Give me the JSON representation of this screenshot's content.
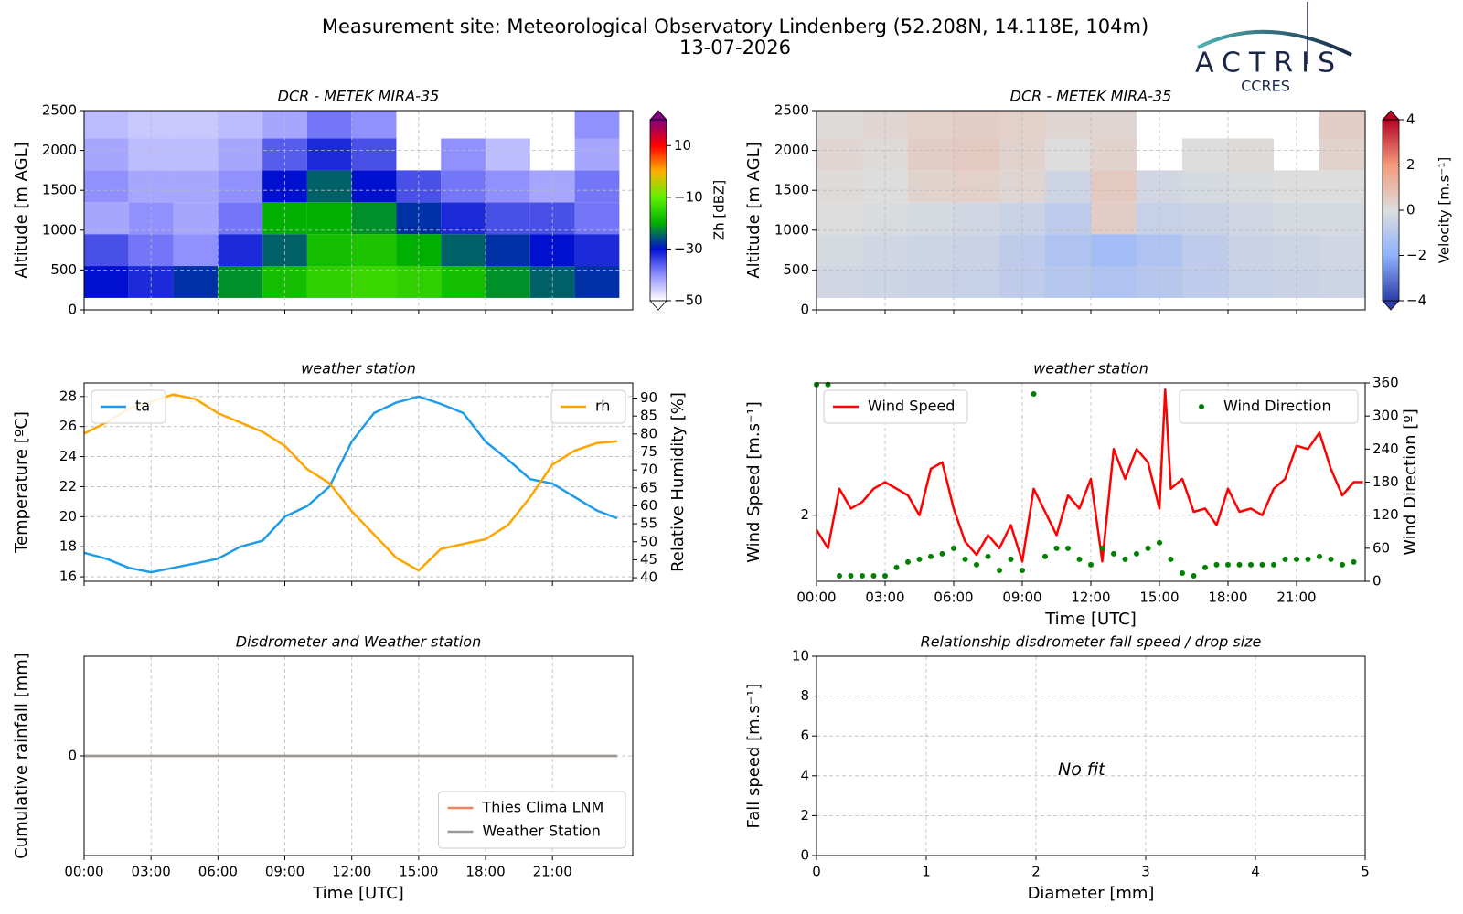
{
  "header": {
    "title": "Measurement site: Meteorological Observatory Lindenberg (52.208N, 14.118E, 104m)",
    "date": "13-07-2026",
    "logo": "ACTRIS",
    "logo_sub": "CCRES"
  },
  "chart_data": [
    {
      "type": "heatmap",
      "title": "DCR - METEK MIRA-35",
      "y_label": "Altitude [m AGL]",
      "xlim": [
        0,
        24.6
      ],
      "xticks": [
        0,
        3,
        6,
        9,
        12,
        15,
        18,
        21
      ],
      "xtick_labels": false,
      "ylim": [
        0,
        2500
      ],
      "yticks": [
        0,
        500,
        1000,
        1500,
        2000,
        2500
      ],
      "grid": true,
      "x_edges": [
        0,
        2,
        4,
        6,
        8,
        10,
        12,
        14,
        16,
        18,
        20,
        22,
        24
      ],
      "y_edges": [
        150,
        550,
        950,
        1350,
        1750,
        2150,
        2500
      ],
      "z": [
        [
          -30,
          -32,
          -28,
          -22,
          -18,
          -15,
          -14,
          -15,
          -18,
          -22,
          -25,
          -28
        ],
        [
          -35,
          -38,
          -40,
          -32,
          -25,
          -18,
          -17,
          -20,
          -25,
          -28,
          -30,
          -32
        ],
        [
          -42,
          -40,
          -42,
          -38,
          -20,
          -20,
          -22,
          -28,
          -32,
          -35,
          -35,
          -38
        ],
        [
          -40,
          -42,
          -42,
          -40,
          -30,
          -25,
          -30,
          -35,
          -38,
          -40,
          -42,
          -38
        ],
        [
          -42,
          -44,
          -44,
          -42,
          -36,
          -32,
          -35,
          null,
          -40,
          -44,
          null,
          -42
        ],
        [
          -44,
          -45,
          -45,
          -44,
          -42,
          -38,
          -40,
          null,
          null,
          null,
          null,
          -40
        ]
      ],
      "clim": [
        -50,
        20
      ],
      "colorbar_ticks": [
        {
          "value": -50,
          "label": "−50"
        },
        {
          "value": -30,
          "label": "−30"
        },
        {
          "value": -10,
          "label": "−10"
        },
        10
      ],
      "colorbar_label": "Zh [dBZ]",
      "colormap": [
        "#ffffff",
        "#9090ff",
        "#0010d0",
        "#00b000",
        "#60f000",
        "#ffb000",
        "#ff0000",
        "#800080"
      ]
    },
    {
      "type": "heatmap",
      "title": "DCR - METEK MIRA-35",
      "y_label": "Altitude [m AGL]",
      "xlim": [
        0,
        24
      ],
      "xticks": [
        0,
        3,
        6,
        9,
        12,
        15,
        18,
        21
      ],
      "xtick_labels": false,
      "ylim": [
        0,
        2500
      ],
      "yticks": [
        0,
        500,
        1000,
        1500,
        2000,
        2500
      ],
      "grid": true,
      "x_edges": [
        0,
        2,
        4,
        6,
        8,
        10,
        12,
        14,
        16,
        18,
        20,
        22,
        24
      ],
      "y_edges": [
        150,
        550,
        950,
        1350,
        1750,
        2150,
        2500
      ],
      "z": [
        [
          -0.3,
          -0.4,
          -0.5,
          -0.6,
          -0.8,
          -1.0,
          -1.2,
          -1.0,
          -0.8,
          -0.6,
          -0.5,
          -0.4
        ],
        [
          -0.2,
          -0.3,
          -0.4,
          -0.5,
          -0.8,
          -1.2,
          -1.5,
          -1.2,
          -0.8,
          -0.5,
          -0.4,
          -0.3
        ],
        [
          0,
          -0.1,
          -0.2,
          -0.3,
          -0.5,
          -0.8,
          0.5,
          -0.6,
          -0.5,
          -0.3,
          -0.2,
          -0.2
        ],
        [
          0.1,
          0,
          0.3,
          0.4,
          0.2,
          -0.4,
          0.6,
          -0.3,
          -0.2,
          -0.1,
          0,
          0
        ],
        [
          0.2,
          0.1,
          0.5,
          0.6,
          0.3,
          0,
          0.3,
          null,
          0,
          0.1,
          null,
          0.3
        ],
        [
          0.1,
          0.2,
          0.4,
          0.5,
          0.4,
          0.2,
          0.2,
          null,
          null,
          null,
          null,
          0.5
        ]
      ],
      "clim": [
        -4,
        4
      ],
      "colorbar_ticks": [
        {
          "value": -4,
          "label": "−4"
        },
        {
          "value": -2,
          "label": "−2"
        },
        0,
        2,
        4
      ],
      "colorbar_label": "Velocity [m.s⁻¹]",
      "colormap": [
        "#2c3ea8",
        "#8fb1fe",
        "#dddddd",
        "#f49a7b",
        "#b40426"
      ]
    },
    {
      "type": "line",
      "title": "weather station",
      "y_label": "Temperature [ºC]",
      "y2_label": "Relative Humidity [%]",
      "xlim": [
        0,
        24.6
      ],
      "xticks": [
        0,
        3,
        6,
        9,
        12,
        15,
        18,
        21
      ],
      "xtick_labels": false,
      "ylim": [
        15.7,
        28.9
      ],
      "yticks": [
        16,
        18,
        20,
        22,
        24,
        26,
        28
      ],
      "y2lim": [
        39,
        94.2
      ],
      "y2ticks": [
        40,
        45,
        50,
        55,
        60,
        65,
        70,
        75,
        80,
        85,
        90
      ],
      "grid": true,
      "legend_y": "upper left",
      "legend_y2": "upper right",
      "series": [
        {
          "name": "ta",
          "color": "#1e9be9",
          "style": "line",
          "x": [
            0,
            1,
            2,
            3,
            4,
            5,
            6,
            7,
            8,
            9,
            10,
            11,
            12,
            13,
            14,
            15,
            16,
            17,
            18,
            19,
            20,
            21,
            22,
            23,
            23.9
          ],
          "values": [
            17.6,
            17.2,
            16.6,
            16.3,
            16.6,
            16.9,
            17.2,
            18.0,
            18.4,
            20.0,
            20.7,
            22.0,
            25.0,
            26.9,
            27.6,
            28.0,
            27.5,
            26.9,
            25.0,
            23.8,
            22.5,
            22.2,
            21.3,
            20.4,
            19.9
          ]
        },
        {
          "name": "rh",
          "color": "#ffa500",
          "style": "line",
          "axis": "y2",
          "x": [
            0,
            1,
            2,
            3,
            4,
            5,
            6,
            7,
            8,
            9,
            10,
            11,
            12,
            13,
            14,
            15,
            16,
            17,
            18,
            19,
            20,
            21,
            22,
            23,
            23.9
          ],
          "values": [
            80.1,
            83.2,
            87.0,
            89.0,
            91.0,
            89.7,
            85.8,
            83.2,
            80.6,
            76.7,
            70.2,
            66.3,
            58.5,
            52.0,
            45.5,
            42.0,
            48.0,
            49.4,
            50.7,
            54.6,
            62.4,
            71.5,
            75.4,
            77.5,
            78.0
          ]
        }
      ]
    },
    {
      "type": "line",
      "title": "weather station",
      "y_label": "Wind Speed [m.s⁻¹]",
      "y2_label": "Wind Direction [º]",
      "x_label": "Time [UTC]",
      "xlim": [
        0,
        24
      ],
      "xticks": [
        {
          "value": 0,
          "label": "00:00"
        },
        {
          "value": 3,
          "label": "03:00"
        },
        {
          "value": 6,
          "label": "06:00"
        },
        {
          "value": 9,
          "label": "09:00"
        },
        {
          "value": 12,
          "label": "12:00"
        },
        {
          "value": 15,
          "label": "15:00"
        },
        {
          "value": 18,
          "label": "18:00"
        },
        {
          "value": 21,
          "label": "21:00"
        }
      ],
      "ylim": [
        1,
        4
      ],
      "yticks": [
        2
      ],
      "y2lim": [
        0,
        360
      ],
      "y2ticks": [
        0,
        60,
        120,
        180,
        240,
        300,
        360
      ],
      "grid": true,
      "legend_y": "upper left",
      "legend_y2": "upper right",
      "series": [
        {
          "name": "Wind Speed",
          "color": "#ff0000",
          "style": "line",
          "x": [
            0,
            0.5,
            1,
            1.5,
            2,
            2.5,
            3,
            3.5,
            4,
            4.5,
            5,
            5.5,
            6,
            6.5,
            7,
            7.5,
            8,
            8.5,
            9,
            9.5,
            10,
            10.5,
            11,
            11.5,
            12,
            12.5,
            13,
            13.5,
            14,
            14.5,
            15,
            15.25,
            15.5,
            16,
            16.5,
            17,
            17.5,
            18,
            18.5,
            19,
            19.5,
            20,
            20.5,
            21,
            21.5,
            22,
            22.5,
            23,
            23.5,
            23.9
          ],
          "values": [
            1.78,
            1.5,
            2.4,
            2.1,
            2.2,
            2.4,
            2.5,
            2.4,
            2.3,
            2.0,
            2.7,
            2.8,
            2.1,
            1.6,
            1.4,
            1.7,
            1.5,
            1.85,
            1.3,
            2.4,
            2.05,
            1.7,
            2.3,
            2.1,
            2.55,
            1.3,
            3.0,
            2.55,
            3.0,
            2.8,
            2.1,
            3.9,
            2.4,
            2.55,
            2.05,
            2.1,
            1.85,
            2.4,
            2.05,
            2.1,
            2.0,
            2.4,
            2.55,
            3.05,
            3.0,
            3.25,
            2.7,
            2.3,
            2.5,
            2.5
          ]
        },
        {
          "name": "Wind Direction",
          "color": "#008000",
          "style": "points",
          "axis": "y2",
          "x": [
            0,
            0.5,
            1,
            1.5,
            2,
            2.5,
            3,
            3.5,
            4,
            4.5,
            5,
            5.5,
            6,
            6.5,
            7,
            7.5,
            8,
            8.5,
            9,
            9.5,
            10,
            10.5,
            11,
            11.5,
            12,
            12.5,
            13,
            13.5,
            14,
            14.5,
            15,
            15.5,
            16,
            16.5,
            17,
            17.5,
            18,
            18.5,
            19,
            19.5,
            20,
            20.5,
            21,
            21.5,
            22,
            22.5,
            23,
            23.5
          ],
          "values": [
            357,
            357,
            10,
            10,
            10,
            10,
            10,
            25,
            35,
            40,
            45,
            50,
            60,
            40,
            30,
            45,
            20,
            40,
            20,
            340,
            45,
            60,
            60,
            40,
            30,
            60,
            50,
            40,
            50,
            60,
            70,
            40,
            15,
            10,
            25,
            30,
            30,
            30,
            30,
            30,
            30,
            40,
            40,
            40,
            45,
            40,
            30,
            35
          ]
        }
      ]
    },
    {
      "type": "line",
      "title": "Disdrometer and Weather station",
      "y_label": "Cumulative rainfall [mm]",
      "x_label": "Time [UTC]",
      "xlim": [
        0,
        24.6
      ],
      "xticks": [
        {
          "value": 0,
          "label": "00:00"
        },
        {
          "value": 3,
          "label": "03:00"
        },
        {
          "value": 6,
          "label": "06:00"
        },
        {
          "value": 9,
          "label": "09:00"
        },
        {
          "value": 12,
          "label": "12:00"
        },
        {
          "value": 15,
          "label": "15:00"
        },
        {
          "value": 18,
          "label": "18:00"
        },
        {
          "value": 21,
          "label": "21:00"
        }
      ],
      "ylim": [
        -1,
        1
      ],
      "yticks": [
        0
      ],
      "grid": true,
      "legend_y": "lower right",
      "series": [
        {
          "name": "Thies Clima LNM",
          "color": "#f4845f",
          "style": "line",
          "x": [
            0,
            23.9
          ],
          "values": [
            0,
            0
          ]
        },
        {
          "name": "Weather Station",
          "color": "#999999",
          "style": "line",
          "x": [
            0,
            23.9
          ],
          "values": [
            0,
            0
          ]
        }
      ]
    },
    {
      "type": "scatter",
      "title": "Relationship disdrometer fall speed / drop size",
      "y_label": "Fall speed [m.s⁻¹]",
      "x_label": "Diameter [mm]",
      "xlim": [
        0,
        5
      ],
      "xticks": [
        0,
        1,
        2,
        3,
        4,
        5
      ],
      "ylim": [
        0,
        10
      ],
      "yticks": [
        0,
        2,
        4,
        6,
        8,
        10
      ],
      "grid": true,
      "annotation": "No fit",
      "series": []
    }
  ]
}
